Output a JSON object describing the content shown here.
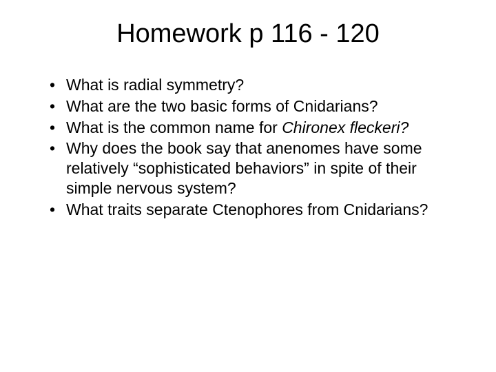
{
  "slide": {
    "title": "Homework p 116 - 120",
    "bullets": [
      {
        "text": "What is radial symmetry?"
      },
      {
        "text": "What are the two basic forms of Cnidarians?"
      },
      {
        "prefix": "What is the common name for ",
        "italic": "Chironex fleckeri?"
      },
      {
        "text": "Why does the book say that anenomes have some relatively “sophisticated behaviors” in spite of their simple nervous system?"
      },
      {
        "text": "What traits separate Ctenophores from Cnidarians?"
      }
    ]
  },
  "style": {
    "background_color": "#ffffff",
    "text_color": "#000000",
    "title_fontsize": 38,
    "body_fontsize": 23,
    "font_family": "Arial"
  }
}
